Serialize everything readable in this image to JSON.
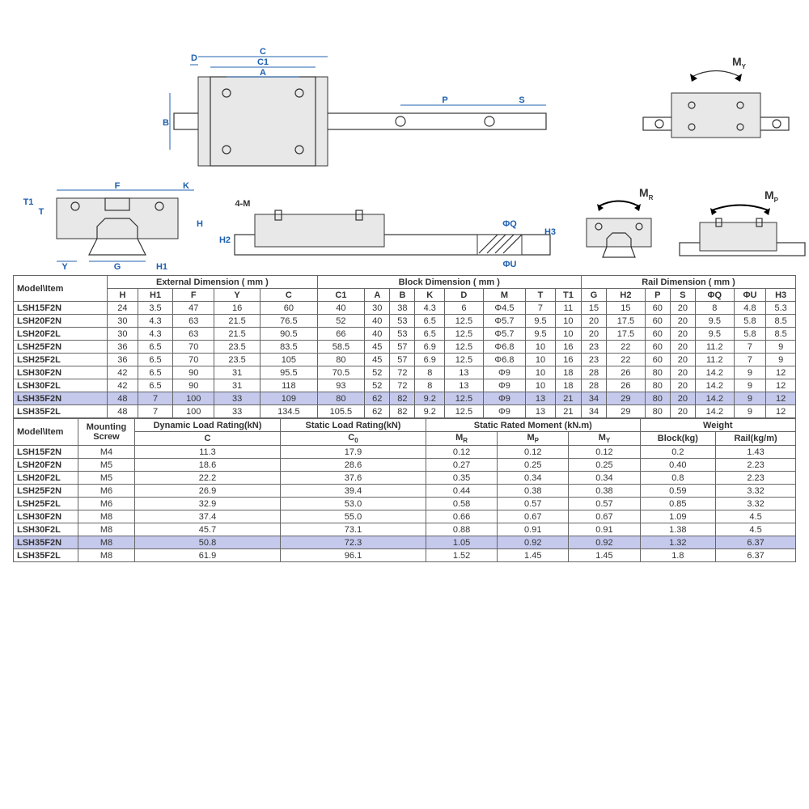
{
  "highlightColor": "#c5c9ec",
  "dimLabels": {
    "D": "D",
    "C": "C",
    "C1": "C1",
    "A": "A",
    "B": "B",
    "P": "P",
    "S": "S",
    "F": "F",
    "K": "K",
    "T1": "T1",
    "T": "T",
    "H": "H",
    "Y": "Y",
    "G": "G",
    "H1": "H1",
    "H2": "H2",
    "4M": "4-M",
    "PhiQ": "ΦQ",
    "PhiU": "ΦU",
    "H3": "H3",
    "MR": "M",
    "MRsub": "R",
    "MY": "M",
    "MYsub": "Y",
    "MP": "M",
    "MPsub": "P"
  },
  "table1": {
    "header": {
      "modelItem": "Model\\Item",
      "external": "External Dimension ( mm )",
      "block": "Block Dimension ( mm )",
      "rail": "Rail Dimension ( mm )",
      "cols": [
        "H",
        "H1",
        "F",
        "Y",
        "C",
        "C1",
        "A",
        "B",
        "K",
        "D",
        "M",
        "T",
        "T1",
        "G",
        "H2",
        "P",
        "S",
        "ΦQ",
        "ΦU",
        "H3"
      ]
    },
    "rows": [
      {
        "model": "LSH15F2N",
        "v": [
          "24",
          "3.5",
          "47",
          "16",
          "60",
          "40",
          "30",
          "38",
          "4.3",
          "6",
          "Φ4.5",
          "7",
          "11",
          "15",
          "15",
          "60",
          "20",
          "8",
          "4.8",
          "5.3"
        ],
        "hl": false
      },
      {
        "model": "LSH20F2N",
        "v": [
          "30",
          "4.3",
          "63",
          "21.5",
          "76.5",
          "52",
          "40",
          "53",
          "6.5",
          "12.5",
          "Φ5.7",
          "9.5",
          "10",
          "20",
          "17.5",
          "60",
          "20",
          "9.5",
          "5.8",
          "8.5"
        ],
        "hl": false
      },
      {
        "model": "LSH20F2L",
        "v": [
          "30",
          "4.3",
          "63",
          "21.5",
          "90.5",
          "66",
          "40",
          "53",
          "6.5",
          "12.5",
          "Φ5.7",
          "9.5",
          "10",
          "20",
          "17.5",
          "60",
          "20",
          "9.5",
          "5.8",
          "8.5"
        ],
        "hl": false
      },
      {
        "model": "LSH25F2N",
        "v": [
          "36",
          "6.5",
          "70",
          "23.5",
          "83.5",
          "58.5",
          "45",
          "57",
          "6.9",
          "12.5",
          "Φ6.8",
          "10",
          "16",
          "23",
          "22",
          "60",
          "20",
          "11.2",
          "7",
          "9"
        ],
        "hl": false
      },
      {
        "model": "LSH25F2L",
        "v": [
          "36",
          "6.5",
          "70",
          "23.5",
          "105",
          "80",
          "45",
          "57",
          "6.9",
          "12.5",
          "Φ6.8",
          "10",
          "16",
          "23",
          "22",
          "60",
          "20",
          "11.2",
          "7",
          "9"
        ],
        "hl": false
      },
      {
        "model": "LSH30F2N",
        "v": [
          "42",
          "6.5",
          "90",
          "31",
          "95.5",
          "70.5",
          "52",
          "72",
          "8",
          "13",
          "Φ9",
          "10",
          "18",
          "28",
          "26",
          "80",
          "20",
          "14.2",
          "9",
          "12"
        ],
        "hl": false
      },
      {
        "model": "LSH30F2L",
        "v": [
          "42",
          "6.5",
          "90",
          "31",
          "118",
          "93",
          "52",
          "72",
          "8",
          "13",
          "Φ9",
          "10",
          "18",
          "28",
          "26",
          "80",
          "20",
          "14.2",
          "9",
          "12"
        ],
        "hl": false
      },
      {
        "model": "LSH35F2N",
        "v": [
          "48",
          "7",
          "100",
          "33",
          "109",
          "80",
          "62",
          "82",
          "9.2",
          "12.5",
          "Φ9",
          "13",
          "21",
          "34",
          "29",
          "80",
          "20",
          "14.2",
          "9",
          "12"
        ],
        "hl": true
      },
      {
        "model": "LSH35F2L",
        "v": [
          "48",
          "7",
          "100",
          "33",
          "134.5",
          "105.5",
          "62",
          "82",
          "9.2",
          "12.5",
          "Φ9",
          "13",
          "21",
          "34",
          "29",
          "80",
          "20",
          "14.2",
          "9",
          "12"
        ],
        "hl": false
      }
    ]
  },
  "table2": {
    "header": {
      "modelItem": "Model\\Item",
      "mountingScrew": "Mounting\nScrew",
      "dyn": "Dynamic Load Rating(kN)",
      "stat": "Static Load Rating(kN)",
      "moment": "Static Rated Moment (kN.m)",
      "weight": "Weight",
      "subC": "C",
      "subC0": "C",
      "subMR": "M",
      "subMP": "M",
      "subMY": "M",
      "block": "Block(kg)",
      "rail": "Rail(kg/m)"
    },
    "rows": [
      {
        "model": "LSH15F2N",
        "v": [
          "M4",
          "11.3",
          "17.9",
          "0.12",
          "0.12",
          "0.12",
          "0.2",
          "1.43"
        ],
        "hl": false
      },
      {
        "model": "LSH20F2N",
        "v": [
          "M5",
          "18.6",
          "28.6",
          "0.27",
          "0.25",
          "0.25",
          "0.40",
          "2.23"
        ],
        "hl": false
      },
      {
        "model": "LSH20F2L",
        "v": [
          "M5",
          "22.2",
          "37.6",
          "0.35",
          "0.34",
          "0.34",
          "0.8",
          "2.23"
        ],
        "hl": false
      },
      {
        "model": "LSH25F2N",
        "v": [
          "M6",
          "26.9",
          "39.4",
          "0.44",
          "0.38",
          "0.38",
          "0.59",
          "3.32"
        ],
        "hl": false
      },
      {
        "model": "LSH25F2L",
        "v": [
          "M6",
          "32.9",
          "53.0",
          "0.58",
          "0.57",
          "0.57",
          "0.85",
          "3.32"
        ],
        "hl": false
      },
      {
        "model": "LSH30F2N",
        "v": [
          "M8",
          "37.4",
          "55.0",
          "0.66",
          "0.67",
          "0.67",
          "1.09",
          "4.5"
        ],
        "hl": false
      },
      {
        "model": "LSH30F2L",
        "v": [
          "M8",
          "45.7",
          "73.1",
          "0.88",
          "0.91",
          "0.91",
          "1.38",
          "4.5"
        ],
        "hl": false
      },
      {
        "model": "LSH35F2N",
        "v": [
          "M8",
          "50.8",
          "72.3",
          "1.05",
          "0.92",
          "0.92",
          "1.32",
          "6.37"
        ],
        "hl": true
      },
      {
        "model": "LSH35F2L",
        "v": [
          "M8",
          "61.9",
          "96.1",
          "1.52",
          "1.45",
          "1.45",
          "1.8",
          "6.37"
        ],
        "hl": false
      }
    ]
  }
}
